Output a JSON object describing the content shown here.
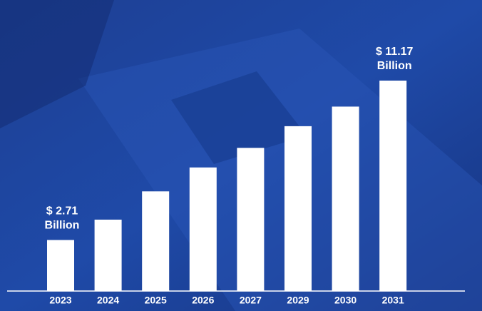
{
  "chart_data": {
    "type": "bar",
    "categories": [
      "2023",
      "2024",
      "2025",
      "2026",
      "2027",
      "2029",
      "2030",
      "2031"
    ],
    "values": [
      2.71,
      3.79,
      5.29,
      6.56,
      7.6,
      8.75,
      9.79,
      11.17
    ],
    "value_labels": [
      [
        "$ 2.71",
        "Billion"
      ],
      null,
      null,
      null,
      null,
      null,
      null,
      [
        "$ 11.17",
        "Billion"
      ]
    ],
    "color": "#ffffff"
  }
}
